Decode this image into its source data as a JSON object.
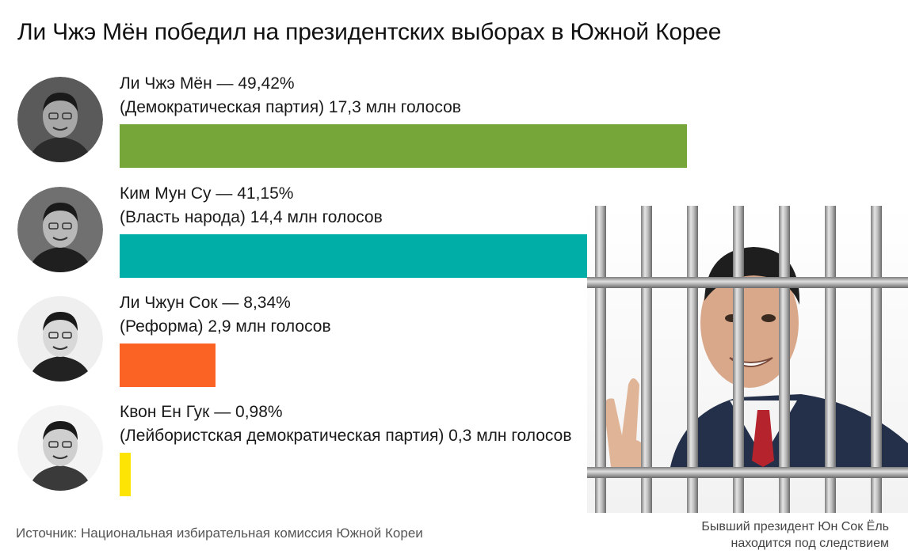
{
  "title": "Ли Чжэ Мён победил на президентских выборах в Южной Корее",
  "chart_data": {
    "type": "bar",
    "orientation": "horizontal",
    "title": "Ли Чжэ Мён победил на президентских выборах в Южной Корее",
    "unit": "%",
    "categories": [
      "Ли Чжэ Мён",
      "Ким Мун Су",
      "Ли Чжун Сок",
      "Квон Ен Гук"
    ],
    "values": [
      49.42,
      41.15,
      8.34,
      0.98
    ],
    "bars": [
      {
        "name": "Ли Чжэ Мён",
        "value": 49.42,
        "line1": "Ли Чжэ Мён — 49,42%",
        "line2": "(Демократическая партия) 17,3 млн голосов",
        "color": "#76a53a",
        "avatar_tone": "grayscale"
      },
      {
        "name": "Ким Мун Су",
        "value": 41.15,
        "line1": "Ким Мун Су — 41,15%",
        "line2": "(Власть народа) 14,4 млн голосов",
        "color": "#00aea8",
        "avatar_tone": "grayscale"
      },
      {
        "name": "Ли Чжун Сок",
        "value": 8.34,
        "line1": "Ли Чжун Сок — 8,34%",
        "line2": "(Реформа) 2,9 млн голосов",
        "color": "#fb6325",
        "avatar_tone": "grayscale"
      },
      {
        "name": "Квон Ен Гук",
        "value": 0.98,
        "line1": "Квон Ен Гук — 0,98%",
        "line2": "(Лейбористская демократическая партия) 0,3 млн голосов",
        "color": "#fde404",
        "avatar_tone": "grayscale"
      }
    ]
  },
  "source": "Источник: Национальная избирательная комиссия Южной Кореи",
  "photo_caption": {
    "line1": "Бывший президент Юн Сок Ёль",
    "line2": "находится под следствием"
  },
  "icons": {
    "candidate_avatar": "person-portrait-icon",
    "jail_photo": "man-behind-bars-icon"
  }
}
